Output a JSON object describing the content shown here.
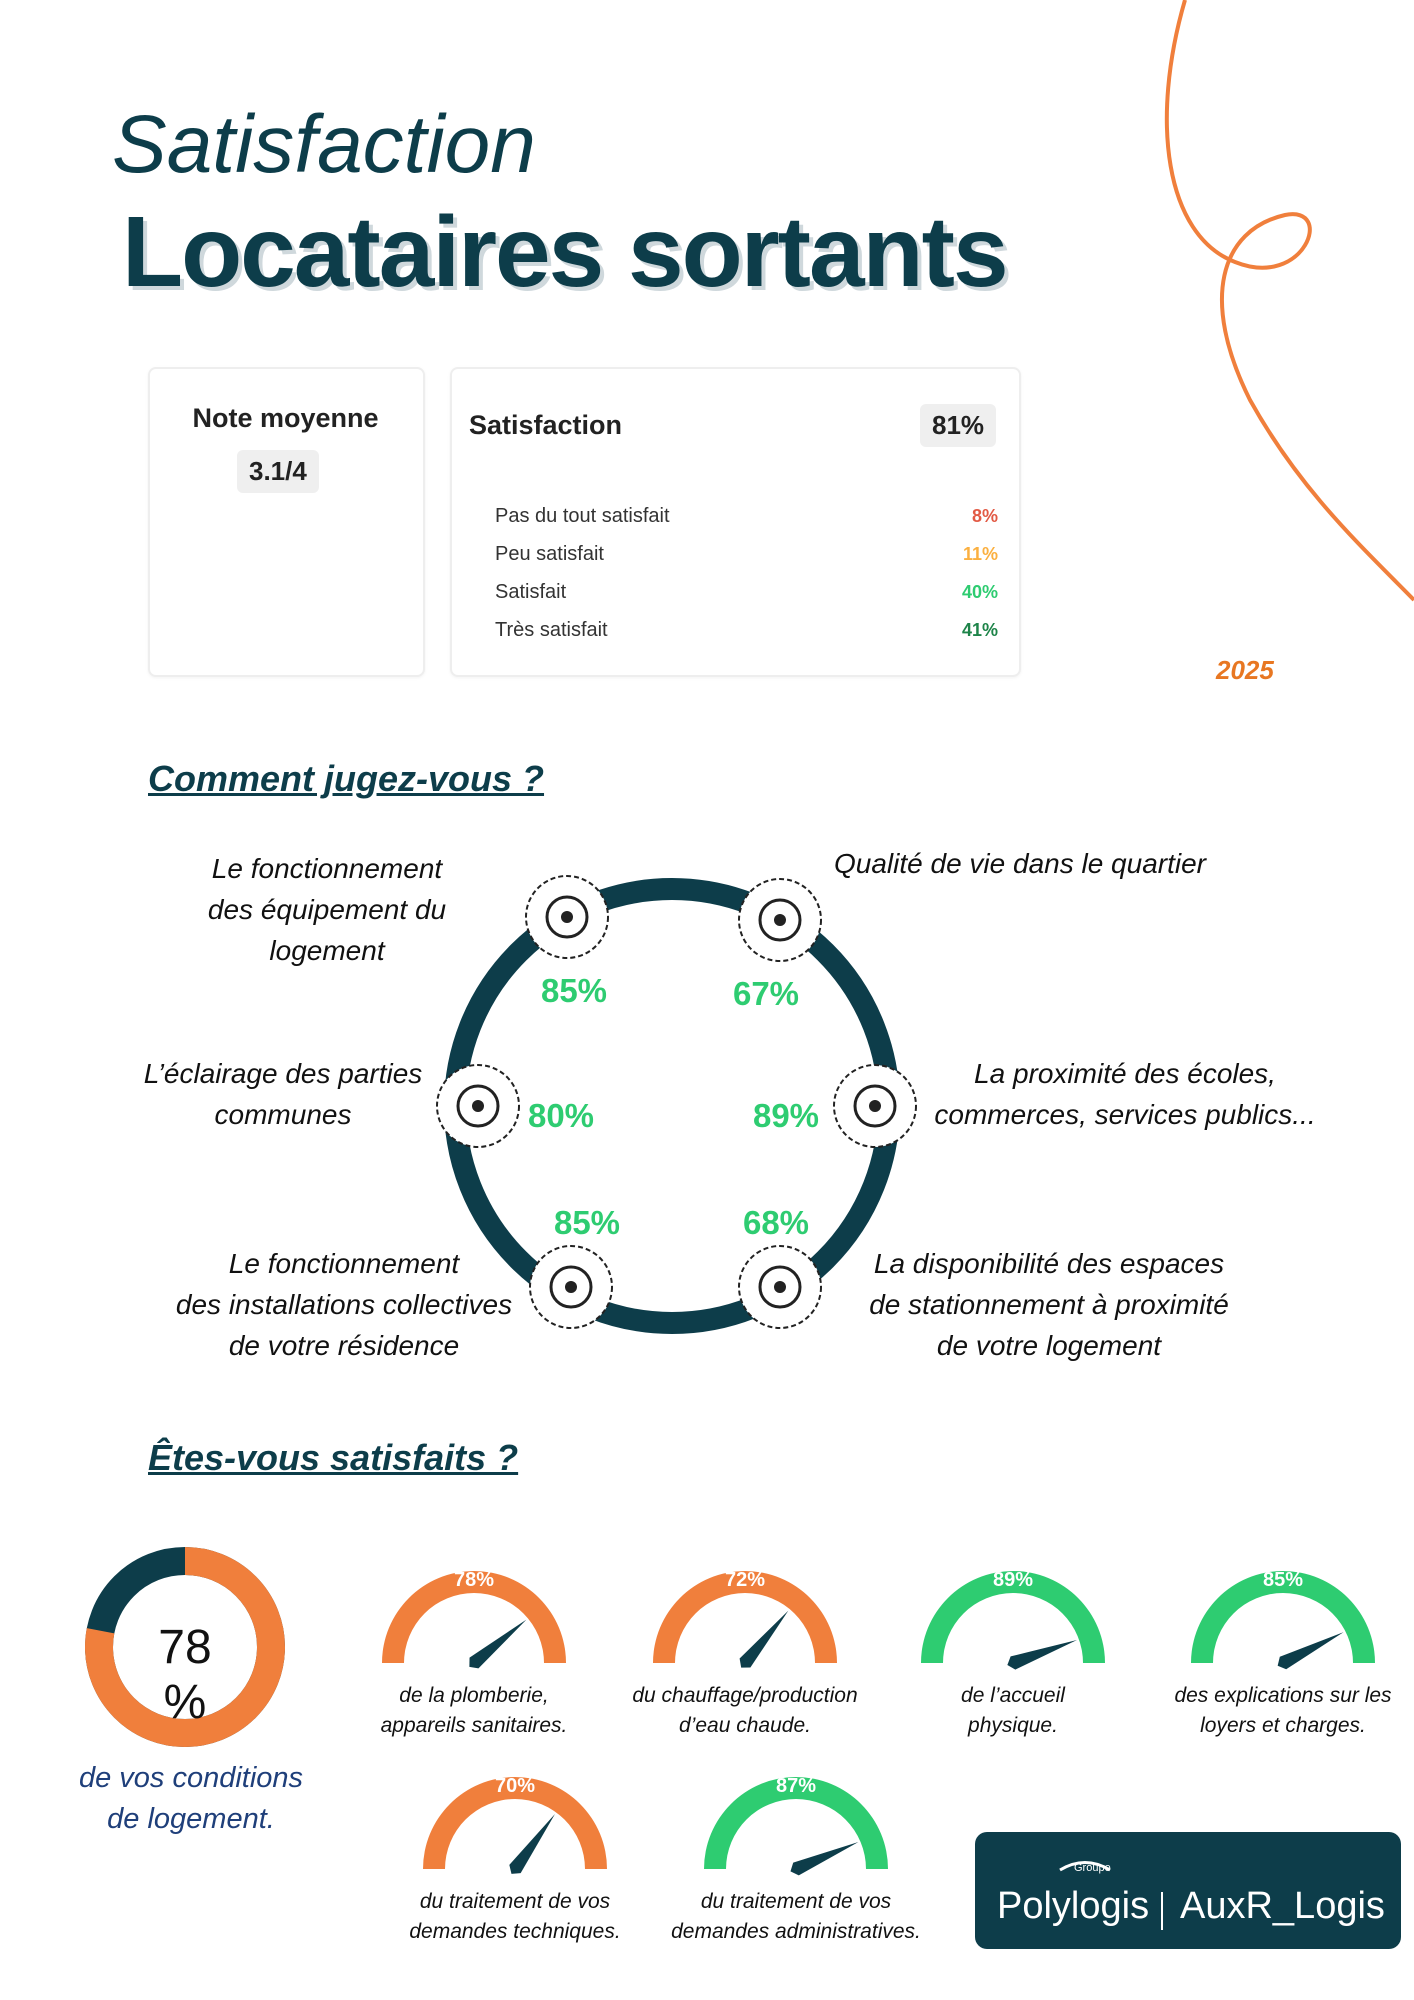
{
  "header": {
    "script_title": "Satisfaction",
    "title": "Locataires sortants",
    "year": "2025"
  },
  "note": {
    "title": "Note moyenne",
    "label": "3.1/4",
    "value": 3.1,
    "max": 4
  },
  "satisfaction": {
    "title": "Satisfaction",
    "total": "81%",
    "segments": [
      {
        "name": "Pas du tout satisfait",
        "color": "#e25a45",
        "value": 8,
        "label": "8%"
      },
      {
        "name": "Peu satisfait",
        "color": "#fbb040",
        "value": 11,
        "label": "11%"
      },
      {
        "name": "Satisfait",
        "color": "#2ecc71",
        "value": 40,
        "label": "40%"
      },
      {
        "name": "Très satisfait",
        "color": "#1e8449",
        "value": 41,
        "label": "41%"
      }
    ]
  },
  "judge": {
    "title": "Comment jugez-vous ?",
    "items": [
      {
        "text": "Le fonctionnement\ndes équipement du\nlogement",
        "label": "85%"
      },
      {
        "text": "Qualité de vie dans le quartier",
        "label": "67%"
      },
      {
        "text": "L’éclairage des parties\ncommunes",
        "label": "80%"
      },
      {
        "text": "La proximité des écoles,\ncommerces, services publics...",
        "label": "89%"
      },
      {
        "text": "Le fonctionnement\ndes installations collectives\nde votre résidence",
        "label": "85%"
      },
      {
        "text": "La disponibilité des espaces\nde stationnement à proximité\nde votre logement",
        "label": "68%"
      }
    ]
  },
  "satisfied": {
    "title": "Êtes-vous satisfaits ?",
    "main": {
      "value": 78,
      "label": "78 %",
      "caption": "de vos conditions\nde logement."
    },
    "gauges": [
      {
        "value": 78,
        "label": "78%",
        "caption": "de la plomberie,\nappareils sanitaires.",
        "color": "#f07f3c"
      },
      {
        "value": 72,
        "label": "72%",
        "caption": "du chauffage/production\nd’eau chaude.",
        "color": "#f07f3c"
      },
      {
        "value": 89,
        "label": "89%",
        "caption": "de l’accueil\nphysique.",
        "color": "#2ecc71"
      },
      {
        "value": 85,
        "label": "85%",
        "caption": "des explications sur les\nloyers et charges.",
        "color": "#2ecc71"
      },
      {
        "value": 70,
        "label": "70%",
        "caption": "du traitement de vos\ndemandes techniques.",
        "color": "#f07f3c"
      },
      {
        "value": 87,
        "label": "87%",
        "caption": "du traitement de vos\ndemandes administratives.",
        "color": "#2ecc71"
      }
    ]
  },
  "logo": {
    "group": "Groupe",
    "brand": "Polylogis",
    "partner": "AuxR_Logis"
  }
}
